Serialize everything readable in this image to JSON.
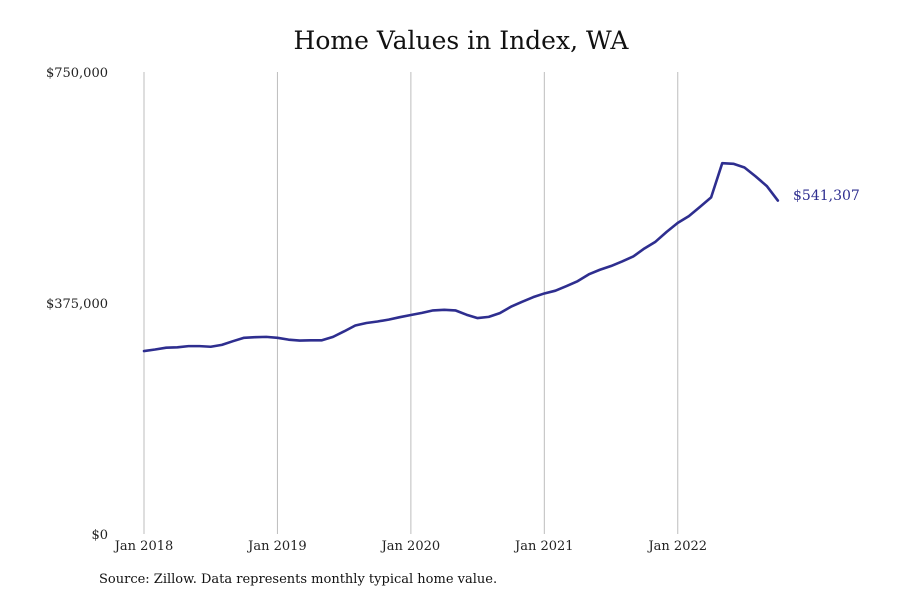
{
  "chart_data": {
    "type": "line",
    "title": "Home Values in Index, WA",
    "xlabel": "",
    "ylabel": "",
    "x_ticks": [
      "Jan 2018",
      "Jan 2019",
      "Jan 2020",
      "Jan 2021",
      "Jan 2022"
    ],
    "y_ticks": [
      "$0",
      "$375,000",
      "$750,000"
    ],
    "ylim": [
      0,
      750000
    ],
    "xlim": [
      "2018-01",
      "2022-10"
    ],
    "grid": "vertical",
    "legend": "none",
    "line_color": "#2e2e8f",
    "end_label": "$541,307",
    "series": [
      {
        "x": [
          "2018-01",
          "2018-02",
          "2018-03",
          "2018-04",
          "2018-05",
          "2018-06",
          "2018-07",
          "2018-08",
          "2018-09",
          "2018-10",
          "2018-11",
          "2018-12",
          "2019-01",
          "2019-02",
          "2019-03",
          "2019-04",
          "2019-05",
          "2019-06",
          "2019-07",
          "2019-08",
          "2019-09",
          "2019-10",
          "2019-11",
          "2019-12",
          "2020-01",
          "2020-02",
          "2020-03",
          "2020-04",
          "2020-05",
          "2020-06",
          "2020-07",
          "2020-08",
          "2020-09",
          "2020-10",
          "2020-11",
          "2020-12",
          "2021-01",
          "2021-02",
          "2021-03",
          "2021-04",
          "2021-05",
          "2021-06",
          "2021-07",
          "2021-08",
          "2021-09",
          "2021-10",
          "2021-11",
          "2021-12",
          "2022-01",
          "2022-02",
          "2022-03",
          "2022-04",
          "2022-05",
          "2022-06",
          "2022-07",
          "2022-08",
          "2022-09",
          "2022-10"
        ],
        "y": [
          297000,
          299500,
          302500,
          303000,
          305000,
          305000,
          304000,
          307000,
          313000,
          318500,
          319500,
          320000,
          318500,
          315500,
          314000,
          314500,
          314500,
          320000,
          329000,
          338500,
          342500,
          345000,
          348000,
          352000,
          355500,
          359000,
          363000,
          364000,
          363000,
          356000,
          350500,
          352500,
          358500,
          369000,
          377000,
          384500,
          390500,
          395000,
          402500,
          410500,
          421500,
          429000,
          435000,
          442500,
          450500,
          463500,
          474500,
          490500,
          505000,
          516000,
          531000,
          546500,
          602000,
          601000,
          595000,
          580500,
          565000,
          541307
        ]
      }
    ]
  },
  "source_note": "Source: Zillow. Data represents monthly typical home value."
}
